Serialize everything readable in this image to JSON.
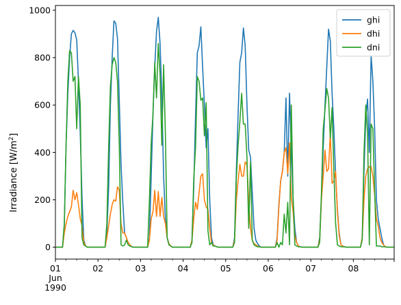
{
  "chart_data": {
    "type": "line",
    "ylabel": "Irradiance [W/m",
    "ylabel_sup": "2",
    "ylabel_close": "]",
    "ylim": [
      -50,
      1020
    ],
    "yticks": [
      0,
      200,
      400,
      600,
      800,
      1000
    ],
    "xlim": [
      0,
      191
    ],
    "xticks": [
      {
        "x": 0,
        "lines": [
          "01",
          "Jun",
          "1990"
        ]
      },
      {
        "x": 24,
        "lines": [
          "02"
        ]
      },
      {
        "x": 48,
        "lines": [
          "03"
        ]
      },
      {
        "x": 72,
        "lines": [
          "04"
        ]
      },
      {
        "x": 96,
        "lines": [
          "05"
        ]
      },
      {
        "x": 120,
        "lines": [
          "06"
        ]
      },
      {
        "x": 144,
        "lines": [
          "07"
        ]
      },
      {
        "x": 168,
        "lines": [
          "08"
        ]
      }
    ],
    "legend_position": "top-right",
    "series": [
      {
        "name": "ghi",
        "color": "#1f77b4",
        "x": [
          0,
          4,
          5,
          6,
          7,
          8,
          9,
          10,
          11,
          12,
          13,
          14,
          15,
          16,
          17,
          18,
          19,
          20,
          24,
          28,
          29,
          30,
          31,
          32,
          33,
          34,
          35,
          36,
          37,
          38,
          39,
          40,
          41,
          42,
          43,
          44,
          48,
          52,
          53,
          54,
          55,
          56,
          57,
          58,
          59,
          60,
          61,
          62,
          63,
          64,
          65,
          66,
          67,
          68,
          72,
          76,
          77,
          78,
          79,
          80,
          81,
          82,
          83,
          84,
          85,
          86,
          87,
          88,
          89,
          90,
          91,
          92,
          96,
          100,
          101,
          102,
          103,
          104,
          105,
          106,
          107,
          108,
          109,
          110,
          111,
          112,
          113,
          114,
          115,
          116,
          120,
          124,
          125,
          126,
          127,
          128,
          129,
          130,
          131,
          132,
          133,
          134,
          135,
          136,
          137,
          138,
          139,
          140,
          144,
          148,
          149,
          150,
          151,
          152,
          153,
          154,
          155,
          156,
          157,
          158,
          159,
          160,
          161,
          162,
          163,
          164,
          168,
          172,
          173,
          174,
          175,
          176,
          177,
          178,
          179,
          180,
          181,
          182,
          183,
          184,
          185,
          186,
          187,
          188,
          191
        ],
        "y": [
          0,
          0,
          90,
          430,
          650,
          800,
          900,
          915,
          905,
          875,
          700,
          480,
          210,
          30,
          5,
          0,
          0,
          0,
          0,
          0,
          60,
          250,
          600,
          800,
          955,
          945,
          880,
          620,
          350,
          190,
          60,
          40,
          20,
          10,
          2,
          0,
          0,
          0,
          40,
          300,
          560,
          760,
          910,
          970,
          860,
          640,
          300,
          120,
          40,
          15,
          5,
          0,
          0,
          0,
          0,
          0,
          30,
          250,
          550,
          820,
          850,
          930,
          760,
          600,
          420,
          500,
          200,
          40,
          10,
          5,
          2,
          0,
          0,
          0,
          40,
          320,
          560,
          780,
          820,
          925,
          850,
          600,
          410,
          380,
          230,
          80,
          30,
          15,
          5,
          0,
          0,
          0,
          40,
          180,
          280,
          320,
          400,
          630,
          300,
          650,
          420,
          200,
          80,
          20,
          5,
          2,
          0,
          0,
          0,
          0,
          40,
          210,
          420,
          600,
          760,
          920,
          870,
          650,
          500,
          300,
          160,
          60,
          10,
          5,
          2,
          0,
          0,
          0,
          40,
          320,
          550,
          625,
          400,
          810,
          700,
          500,
          200,
          120,
          80,
          40,
          10,
          2,
          0,
          0,
          0
        ]
      },
      {
        "name": "dhi",
        "color": "#ff7f0e",
        "x": [
          0,
          4,
          5,
          6,
          7,
          8,
          9,
          10,
          11,
          12,
          13,
          14,
          15,
          16,
          17,
          18,
          19,
          20,
          24,
          28,
          29,
          30,
          31,
          32,
          33,
          34,
          35,
          36,
          37,
          38,
          39,
          40,
          41,
          42,
          43,
          44,
          48,
          52,
          53,
          54,
          55,
          56,
          57,
          58,
          59,
          60,
          61,
          62,
          63,
          64,
          65,
          66,
          67,
          68,
          72,
          76,
          77,
          78,
          79,
          80,
          81,
          82,
          83,
          84,
          85,
          86,
          87,
          88,
          89,
          90,
          91,
          92,
          96,
          100,
          101,
          102,
          103,
          104,
          105,
          106,
          107,
          108,
          109,
          110,
          111,
          112,
          113,
          114,
          115,
          116,
          120,
          124,
          125,
          126,
          127,
          128,
          129,
          130,
          131,
          132,
          133,
          134,
          135,
          136,
          137,
          138,
          139,
          140,
          144,
          148,
          149,
          150,
          151,
          152,
          153,
          154,
          155,
          156,
          157,
          158,
          159,
          160,
          161,
          162,
          163,
          164,
          168,
          172,
          173,
          174,
          175,
          176,
          177,
          178,
          179,
          180,
          181,
          182,
          183,
          184,
          185,
          186,
          187,
          188,
          191
        ],
        "y": [
          0,
          0,
          60,
          100,
          130,
          150,
          170,
          240,
          200,
          230,
          180,
          120,
          90,
          20,
          5,
          0,
          0,
          0,
          0,
          0,
          40,
          90,
          140,
          180,
          200,
          195,
          255,
          240,
          100,
          60,
          60,
          40,
          20,
          10,
          2,
          0,
          0,
          0,
          30,
          120,
          150,
          240,
          130,
          235,
          130,
          210,
          130,
          100,
          40,
          15,
          5,
          0,
          0,
          0,
          0,
          0,
          30,
          120,
          190,
          160,
          230,
          300,
          310,
          200,
          170,
          160,
          80,
          20,
          10,
          5,
          2,
          0,
          0,
          0,
          30,
          200,
          280,
          350,
          300,
          300,
          360,
          350,
          190,
          80,
          30,
          15,
          10,
          5,
          2,
          0,
          0,
          0,
          30,
          170,
          280,
          320,
          400,
          420,
          310,
          440,
          210,
          150,
          50,
          20,
          5,
          2,
          0,
          0,
          0,
          0,
          30,
          200,
          300,
          410,
          320,
          330,
          480,
          270,
          280,
          320,
          150,
          50,
          10,
          5,
          2,
          0,
          0,
          0,
          40,
          200,
          300,
          330,
          340,
          340,
          300,
          220,
          120,
          90,
          40,
          20,
          10,
          2,
          0,
          0,
          0
        ]
      },
      {
        "name": "dni",
        "color": "#2ca02c",
        "x": [
          0,
          4,
          5,
          6,
          7,
          8,
          9,
          10,
          11,
          12,
          13,
          14,
          15,
          16,
          17,
          18,
          19,
          20,
          24,
          28,
          29,
          30,
          31,
          32,
          33,
          34,
          35,
          36,
          37,
          38,
          39,
          40,
          41,
          42,
          43,
          44,
          48,
          52,
          53,
          54,
          55,
          56,
          57,
          58,
          59,
          60,
          61,
          62,
          63,
          64,
          65,
          66,
          67,
          68,
          72,
          76,
          77,
          78,
          79,
          80,
          81,
          82,
          83,
          84,
          85,
          86,
          87,
          88,
          89,
          90,
          91,
          92,
          96,
          100,
          101,
          102,
          103,
          104,
          105,
          106,
          107,
          108,
          109,
          110,
          111,
          112,
          113,
          114,
          115,
          116,
          120,
          124,
          125,
          126,
          127,
          128,
          129,
          130,
          131,
          132,
          133,
          134,
          135,
          136,
          137,
          138,
          139,
          140,
          144,
          148,
          149,
          150,
          151,
          152,
          153,
          154,
          155,
          156,
          157,
          158,
          159,
          160,
          161,
          162,
          163,
          164,
          168,
          172,
          173,
          174,
          175,
          176,
          177,
          178,
          179,
          180,
          181,
          182,
          183,
          184,
          185,
          186,
          187,
          188,
          191
        ],
        "y": [
          0,
          0,
          100,
          430,
          700,
          830,
          820,
          700,
          720,
          500,
          720,
          600,
          40,
          10,
          5,
          0,
          0,
          0,
          0,
          0,
          100,
          420,
          680,
          770,
          800,
          780,
          700,
          430,
          10,
          5,
          10,
          30,
          10,
          5,
          2,
          0,
          0,
          0,
          200,
          440,
          560,
          780,
          630,
          860,
          730,
          430,
          770,
          480,
          40,
          10,
          5,
          0,
          0,
          0,
          0,
          0,
          20,
          290,
          420,
          720,
          700,
          620,
          630,
          470,
          610,
          70,
          10,
          20,
          5,
          5,
          2,
          0,
          0,
          0,
          20,
          290,
          430,
          530,
          650,
          520,
          520,
          380,
          80,
          360,
          30,
          10,
          5,
          2,
          2,
          0,
          0,
          0,
          20,
          0,
          20,
          10,
          140,
          60,
          190,
          10,
          600,
          220,
          10,
          5,
          2,
          2,
          0,
          0,
          0,
          0,
          20,
          230,
          500,
          580,
          670,
          630,
          460,
          590,
          320,
          100,
          10,
          5,
          2,
          2,
          2,
          0,
          0,
          0,
          30,
          400,
          600,
          480,
          10,
          520,
          500,
          240,
          5,
          5,
          5,
          2,
          2,
          2,
          0,
          0,
          0
        ]
      }
    ]
  }
}
